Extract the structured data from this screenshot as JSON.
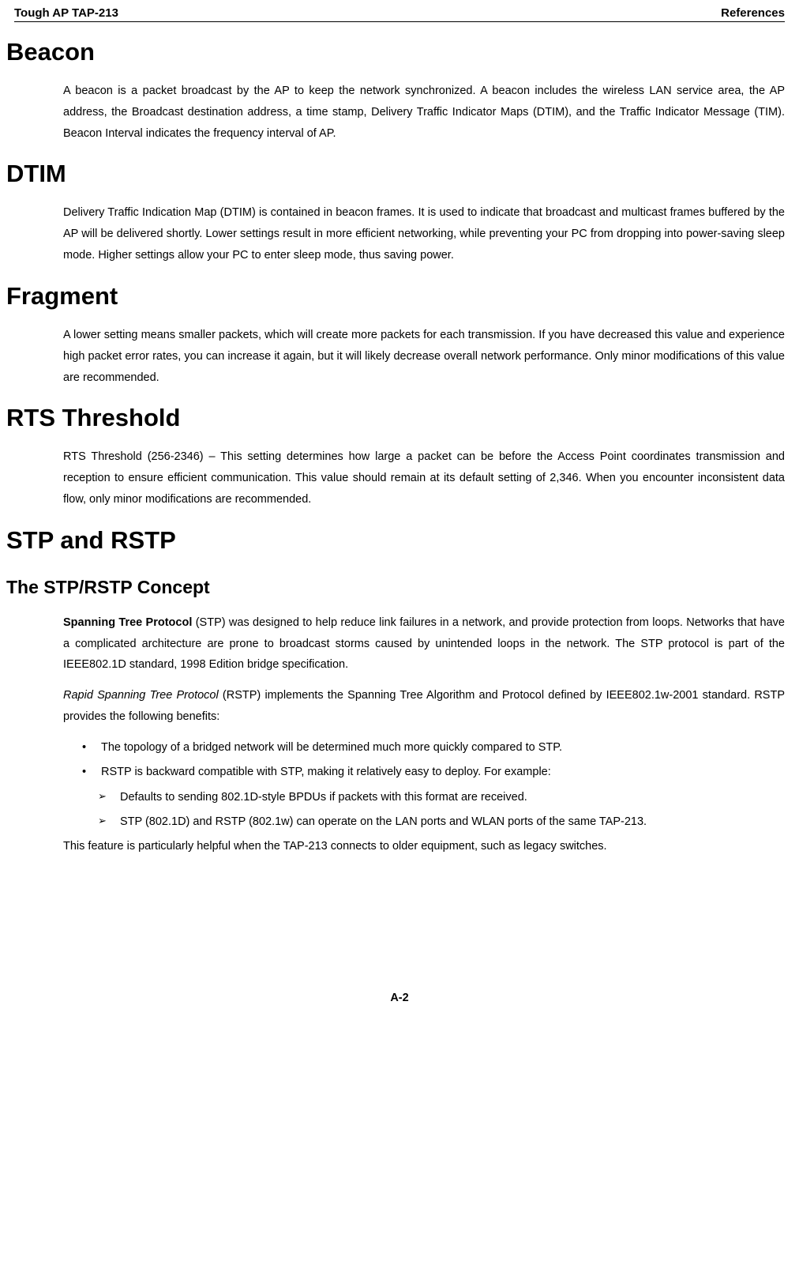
{
  "header": {
    "left": "Tough AP TAP-213",
    "right": "References"
  },
  "sections": {
    "beacon": {
      "title": "Beacon",
      "para": "A beacon is a packet broadcast by the AP to keep the network synchronized. A beacon includes the wireless LAN service area, the AP address, the Broadcast destination address, a time stamp, Delivery Traffic Indicator Maps (DTIM), and the Traffic Indicator Message (TIM). Beacon Interval indicates the frequency interval of AP."
    },
    "dtim": {
      "title": "DTIM",
      "para": "Delivery Traffic Indication Map (DTIM) is contained in beacon frames. It is used to indicate that broadcast and multicast frames buffered by the AP will be delivered shortly. Lower settings result in more efficient networking, while preventing your PC from dropping into power-saving sleep mode. Higher settings allow your PC to enter sleep mode, thus saving power."
    },
    "fragment": {
      "title": "Fragment",
      "para": "A lower setting means smaller packets, which will create more packets for each transmission. If you have decreased this value and experience high packet error rates, you can increase it again, but it will likely decrease overall network performance. Only minor modifications of this value are recommended."
    },
    "rts": {
      "title": "RTS Threshold",
      "para": "RTS Threshold (256-2346) – This setting determines how large a packet can be before the Access Point coordinates transmission and reception to ensure efficient communication. This value should remain at its default setting of 2,346. When you encounter inconsistent data flow, only minor modifications are recommended."
    },
    "stp": {
      "title": "STP and RSTP",
      "concept_title": "The STP/RSTP Concept",
      "stp_bold": "Spanning Tree Protocol",
      "stp_rest": " (STP) was designed to help reduce link failures in a network, and provide protection from loops. Networks that have a complicated architecture are prone to broadcast storms caused by unintended loops in the network. The STP protocol is part of the IEEE802.1D standard, 1998 Edition bridge specification.",
      "rstp_italic": "Rapid Spanning Tree Protocol",
      "rstp_rest": " (RSTP) implements the Spanning Tree Algorithm and Protocol defined by IEEE802.1w-2001 standard. RSTP provides the following benefits:",
      "bullet1": "The topology of a bridged network will be determined much more quickly compared to STP.",
      "bullet2": "RSTP is backward compatible with STP, making it relatively easy to deploy. For example:",
      "arrow1": "Defaults to sending 802.1D-style BPDUs if packets with this format are received.",
      "arrow2": "STP (802.1D) and RSTP (802.1w) can operate on the LAN ports and WLAN ports of the same TAP-213.",
      "closing": "This feature is particularly helpful when the TAP-213 connects to older equipment, such as legacy switches."
    }
  },
  "footer": "A-2"
}
